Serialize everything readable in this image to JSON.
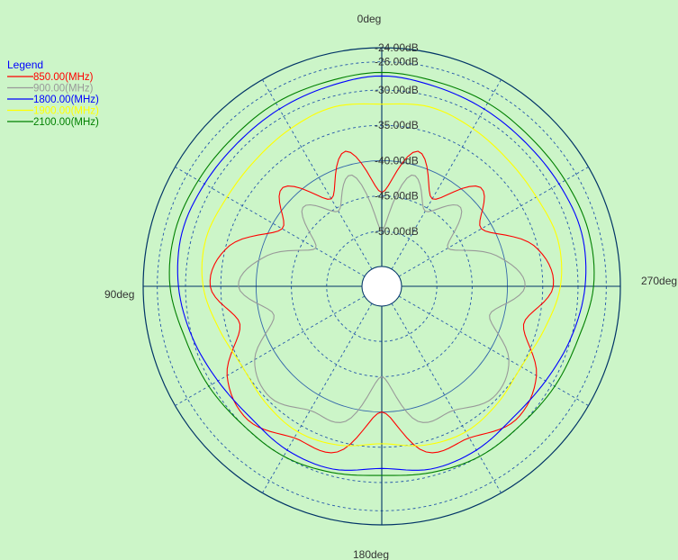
{
  "chart_data": {
    "type": "polar-line",
    "angle_labels": [
      "0deg",
      "90deg",
      "180deg",
      "270deg"
    ],
    "angle_direction": "counterclockwise",
    "radial_axis": {
      "min": -55,
      "max": -24,
      "ticks": [
        -24,
        -26,
        -30,
        -35,
        -40,
        -45,
        -50
      ],
      "tick_labels": [
        "-24.00dB",
        "-26.00dB",
        "-30.00dB",
        "-35.00dB",
        "-40.00dB",
        "-45.00dB",
        "-50.00dB"
      ]
    },
    "grid": true,
    "legend": {
      "title": "Legend",
      "position": "top-left"
    },
    "angles_deg": [
      0,
      15,
      30,
      45,
      60,
      75,
      90,
      105,
      120,
      135,
      150,
      165,
      180,
      195,
      210,
      225,
      240,
      255,
      270,
      285,
      300,
      315,
      330,
      345
    ],
    "series": [
      {
        "name": "850.00(MHz)",
        "color": "#ff0000",
        "values": [
          -44.5,
          -38.0,
          -43.5,
          -38.0,
          -41.5,
          -35.5,
          -33.5,
          -37.0,
          -32.5,
          -31.0,
          -33.0,
          -33.5,
          -40.0,
          -33.5,
          -33.0,
          -31.0,
          -32.5,
          -37.0,
          -33.5,
          -35.5,
          -41.5,
          -38.0,
          -43.5,
          -38.0
        ]
      },
      {
        "name": "900.00(MHz)",
        "color": "#999999",
        "values": [
          -50.0,
          -41.5,
          -45.5,
          -42.0,
          -47.0,
          -41.0,
          -37.5,
          -42.0,
          -37.0,
          -35.5,
          -37.5,
          -38.0,
          -45.0,
          -38.0,
          -37.5,
          -35.5,
          -37.0,
          -42.0,
          -37.5,
          -41.0,
          -47.0,
          -42.0,
          -45.5,
          -41.5
        ]
      },
      {
        "name": "1800.00(MHz)",
        "color": "#0000ff",
        "values": [
          -28.0,
          -28.5,
          -28.8,
          -29.0,
          -28.8,
          -28.5,
          -29.0,
          -30.0,
          -31.0,
          -31.5,
          -31.0,
          -31.0,
          -32.0,
          -31.0,
          -31.0,
          -31.5,
          -31.0,
          -30.0,
          -29.0,
          -28.5,
          -28.8,
          -29.0,
          -28.8,
          -28.5
        ]
      },
      {
        "name": "1900.00(MHz)",
        "color": "#ffff00",
        "values": [
          -32.0,
          -31.5,
          -32.0,
          -32.5,
          -32.5,
          -32.0,
          -32.5,
          -34.0,
          -35.0,
          -34.5,
          -34.0,
          -34.5,
          -35.5,
          -34.5,
          -34.0,
          -34.5,
          -35.0,
          -34.0,
          -32.5,
          -32.0,
          -32.5,
          -32.5,
          -32.0,
          -31.5
        ]
      },
      {
        "name": "2100.00(MHz)",
        "color": "#008000",
        "values": [
          -27.5,
          -27.8,
          -27.8,
          -28.0,
          -27.8,
          -27.5,
          -27.8,
          -29.0,
          -29.5,
          -30.0,
          -30.0,
          -30.5,
          -31.0,
          -30.5,
          -30.0,
          -30.0,
          -29.5,
          -29.0,
          -27.8,
          -27.5,
          -27.8,
          -28.0,
          -27.8,
          -27.8
        ]
      }
    ]
  },
  "colors": {
    "background": "#ccf5c8",
    "axis": "#003366",
    "grid_solid": "#3366aa",
    "grid_dashed": "#2255aa",
    "legend_title": "#0000ff"
  }
}
